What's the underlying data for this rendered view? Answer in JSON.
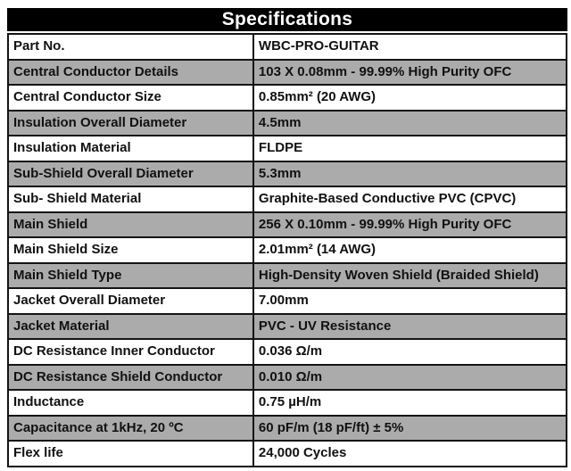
{
  "header": {
    "title": "Specifications"
  },
  "table": {
    "rows": [
      {
        "label": "Part No.",
        "value": "WBC-PRO-GUITAR"
      },
      {
        "label": "Central Conductor Details",
        "value": "103 X 0.08mm - 99.99% High Purity OFC"
      },
      {
        "label": "Central Conductor Size",
        "value": "0.85mm² (20 AWG)"
      },
      {
        "label": "Insulation Overall Diameter",
        "value": "4.5mm"
      },
      {
        "label": "Insulation Material",
        "value": "FLDPE"
      },
      {
        "label": "Sub-Shield Overall Diameter",
        "value": "5.3mm"
      },
      {
        "label": "Sub- Shield Material",
        "value": "Graphite-Based Conductive PVC (CPVC)"
      },
      {
        "label": "Main Shield",
        "value": "256 X 0.10mm - 99.99% High Purity OFC"
      },
      {
        "label": "Main Shield Size",
        "value": "2.01mm² (14 AWG)"
      },
      {
        "label": "Main Shield Type",
        "value": "High-Density Woven Shield (Braided Shield)"
      },
      {
        "label": "Jacket Overall Diameter",
        "value": "7.00mm"
      },
      {
        "label": "Jacket Material",
        "value": "PVC - UV Resistance"
      },
      {
        "label": "DC Resistance Inner Conductor",
        "value": "0.036 Ω/m"
      },
      {
        "label": "DC Resistance Shield Conductor",
        "value": "0.010 Ω/m"
      },
      {
        "label": "Inductance",
        "value": "0.75 µH/m"
      },
      {
        "label": "Capacitance at 1kHz, 20 ºC",
        "value": "60 pF/m (18 pF/ft) ± 5%"
      },
      {
        "label": "Flex life",
        "value": "24,000 Cycles"
      }
    ]
  },
  "colors": {
    "header_bg": "#000000",
    "header_text": "#ffffff",
    "row_alt_bg": "#ababab",
    "row_bg": "#ffffff",
    "border": "#141414",
    "text": "#111111"
  }
}
